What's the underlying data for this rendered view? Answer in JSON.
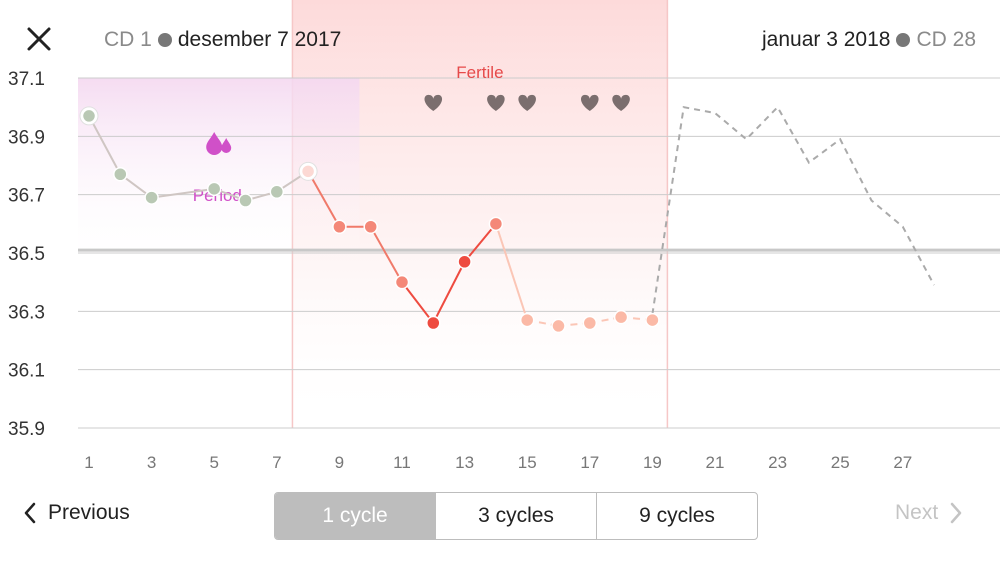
{
  "header": {
    "start_cd": "CD 1",
    "start_date": "desember 7 2017",
    "end_date": "januar 3 2018",
    "end_cd": "CD 28",
    "close_icon": "close-icon"
  },
  "nav": {
    "previous_label": "Previous",
    "next_label": "Next"
  },
  "segments": [
    "1 cycle",
    "3 cycles",
    "9 cycles"
  ],
  "selected_segment": 0,
  "colors": {
    "period": "#d050c8",
    "fertile_band": "#fde4e4",
    "fertile_text": "#e64a4a",
    "heart": "#7b6e6e",
    "green_point": "#b9c8b4",
    "red_point": "#ee4b40",
    "light_red_point": "#f48878",
    "peach_point": "#fbb9a6"
  },
  "chart_data": {
    "type": "line",
    "x_tick_labels": [
      "1",
      "3",
      "5",
      "7",
      "9",
      "11",
      "13",
      "15",
      "17",
      "19",
      "21",
      "23",
      "25",
      "27"
    ],
    "ylim": [
      35.9,
      37.1
    ],
    "y_tick_labels": [
      "37.1",
      "36.9",
      "36.7",
      "36.5",
      "36.3",
      "36.1",
      "35.9"
    ],
    "coverline": 36.51,
    "period_label": "Period",
    "period_days": [
      1,
      9
    ],
    "fertile_label": "Fertile",
    "fertile_days": [
      8,
      19
    ],
    "intercourse_days": [
      12,
      14,
      15,
      17,
      18
    ],
    "measured": [
      {
        "day": 1,
        "temp": 36.97,
        "c": "green",
        "ring": true
      },
      {
        "day": 2,
        "temp": 36.77,
        "c": "green"
      },
      {
        "day": 3,
        "temp": 36.69,
        "c": "green"
      },
      {
        "day": 5,
        "temp": 36.72,
        "c": "green"
      },
      {
        "day": 6,
        "temp": 36.68,
        "c": "green"
      },
      {
        "day": 7,
        "temp": 36.71,
        "c": "green"
      },
      {
        "day": 8,
        "temp": 36.78,
        "c": "pale",
        "ring": true
      },
      {
        "day": 9,
        "temp": 36.59,
        "c": "lightred"
      },
      {
        "day": 10,
        "temp": 36.59,
        "c": "lightred"
      },
      {
        "day": 11,
        "temp": 36.4,
        "c": "lightred"
      },
      {
        "day": 12,
        "temp": 36.26,
        "c": "red"
      },
      {
        "day": 13,
        "temp": 36.47,
        "c": "red"
      },
      {
        "day": 14,
        "temp": 36.6,
        "c": "lightred"
      },
      {
        "day": 15,
        "temp": 36.27,
        "c": "peach"
      },
      {
        "day": 16,
        "temp": 36.25,
        "c": "peach"
      },
      {
        "day": 17,
        "temp": 36.26,
        "c": "peach"
      },
      {
        "day": 18,
        "temp": 36.28,
        "c": "peach"
      },
      {
        "day": 19,
        "temp": 36.27,
        "c": "peach"
      }
    ],
    "prediction": [
      {
        "day": 19,
        "temp": 36.29
      },
      {
        "day": 20,
        "temp": 37.0
      },
      {
        "day": 21,
        "temp": 36.98
      },
      {
        "day": 22,
        "temp": 36.89
      },
      {
        "day": 23,
        "temp": 37.0
      },
      {
        "day": 24,
        "temp": 36.81
      },
      {
        "day": 25,
        "temp": 36.89
      },
      {
        "day": 26,
        "temp": 36.68
      },
      {
        "day": 27,
        "temp": 36.59
      },
      {
        "day": 28,
        "temp": 36.39
      }
    ]
  }
}
